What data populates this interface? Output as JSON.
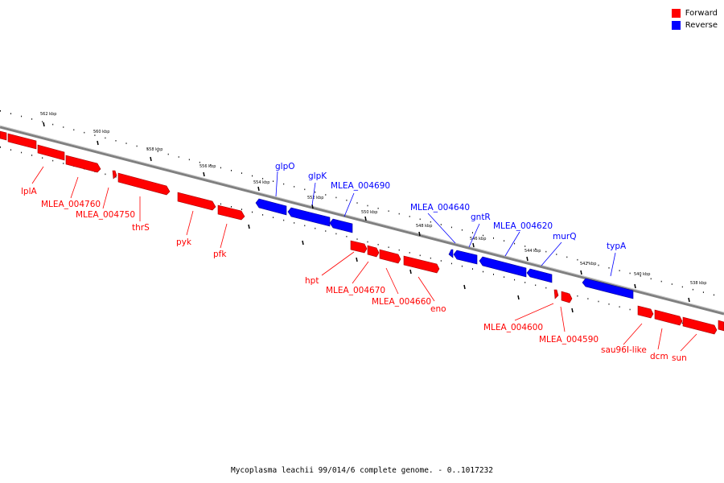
{
  "colors": {
    "forward": "#ff0000",
    "reverse": "#0000ff",
    "backbone": "#808080"
  },
  "legend": [
    {
      "label": "Forward",
      "color": "#ff0000"
    },
    {
      "label": "Reverse",
      "color": "#0000ff"
    }
  ],
  "ticks": [
    "562 kbp",
    "560 kbp",
    "558 kbp",
    "556 kbp",
    "554 kbp",
    "552 kbp",
    "550 kbp",
    "548 kbp",
    "546 kbp",
    "544 kbp",
    "542 kbp",
    "540 kbp",
    "538 kbp"
  ],
  "forward_genes": [
    "lplA",
    "MLEA_004760",
    "MLEA_004750",
    "thrS",
    "pyk",
    "pfk"
  ],
  "reverse_genes": [
    "glpO",
    "glpK",
    "MLEA_004690",
    "MLEA_004640",
    "gntR",
    "MLEA_004620",
    "murQ",
    "typA"
  ],
  "lower_genes": [
    "hpt",
    "MLEA_004670",
    "MLEA_004660",
    "eno",
    "MLEA_004600",
    "MLEA_004590",
    "sau96I-like",
    "dcm",
    "sun"
  ],
  "caption": "Mycoplasma leachii 99/014/6 complete genome. - 0..1017232"
}
